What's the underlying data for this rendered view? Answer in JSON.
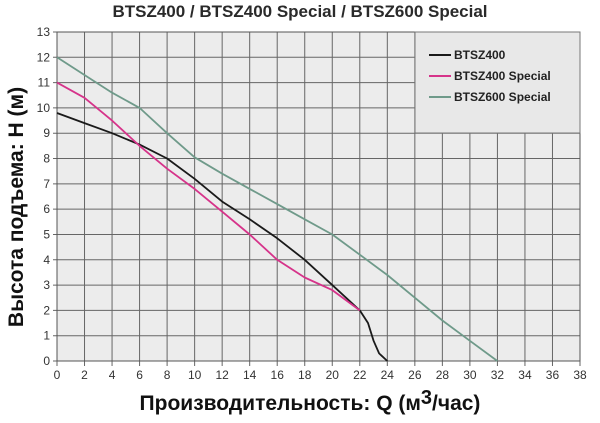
{
  "chart_data": {
    "type": "line",
    "title": "BTSZ400 / BTSZ400 Special / BTSZ600 Special",
    "xlabel_prefix": "Производительность: Q (м",
    "xlabel_sup": "3",
    "xlabel_suffix": "/час)",
    "ylabel": "Высота подъема: H (м)",
    "xlim": [
      0,
      38
    ],
    "ylim": [
      0,
      13
    ],
    "xticks": [
      0,
      2,
      4,
      6,
      8,
      10,
      12,
      14,
      16,
      18,
      20,
      22,
      24,
      26,
      28,
      30,
      32,
      34,
      36,
      38
    ],
    "yticks": [
      0,
      1,
      2,
      3,
      4,
      5,
      6,
      7,
      8,
      9,
      10,
      11,
      12,
      13
    ],
    "grid": true,
    "legend_position": "top-right",
    "series": [
      {
        "name": "BTSZ400",
        "color": "#1a1a1a",
        "x": [
          0,
          2,
          4,
          6,
          8,
          10,
          12,
          14,
          16,
          18,
          20,
          22,
          22.6,
          23,
          23.4,
          24
        ],
        "y": [
          9.8,
          9.4,
          9.0,
          8.55,
          8.0,
          7.2,
          6.3,
          5.6,
          4.85,
          4.0,
          3.0,
          2.0,
          1.5,
          0.8,
          0.3,
          0
        ]
      },
      {
        "name": "BTSZ400 Special",
        "color": "#d6338a",
        "x": [
          0,
          2,
          4,
          6,
          8,
          10,
          12,
          14,
          16,
          18,
          20,
          22
        ],
        "y": [
          11,
          10.4,
          9.5,
          8.5,
          7.6,
          6.8,
          5.9,
          5.0,
          4.0,
          3.3,
          2.8,
          2.0
        ]
      },
      {
        "name": "BTSZ600 Special",
        "color": "#6f9a8a",
        "x": [
          0,
          2,
          4,
          6,
          8,
          10,
          12,
          14,
          16,
          18,
          20,
          22,
          24,
          26,
          28,
          30,
          32
        ],
        "y": [
          12,
          11.3,
          10.6,
          10,
          9,
          8.05,
          7.4,
          6.8,
          6.2,
          5.6,
          5.0,
          4.2,
          3.4,
          2.5,
          1.6,
          0.8,
          0
        ]
      }
    ]
  }
}
